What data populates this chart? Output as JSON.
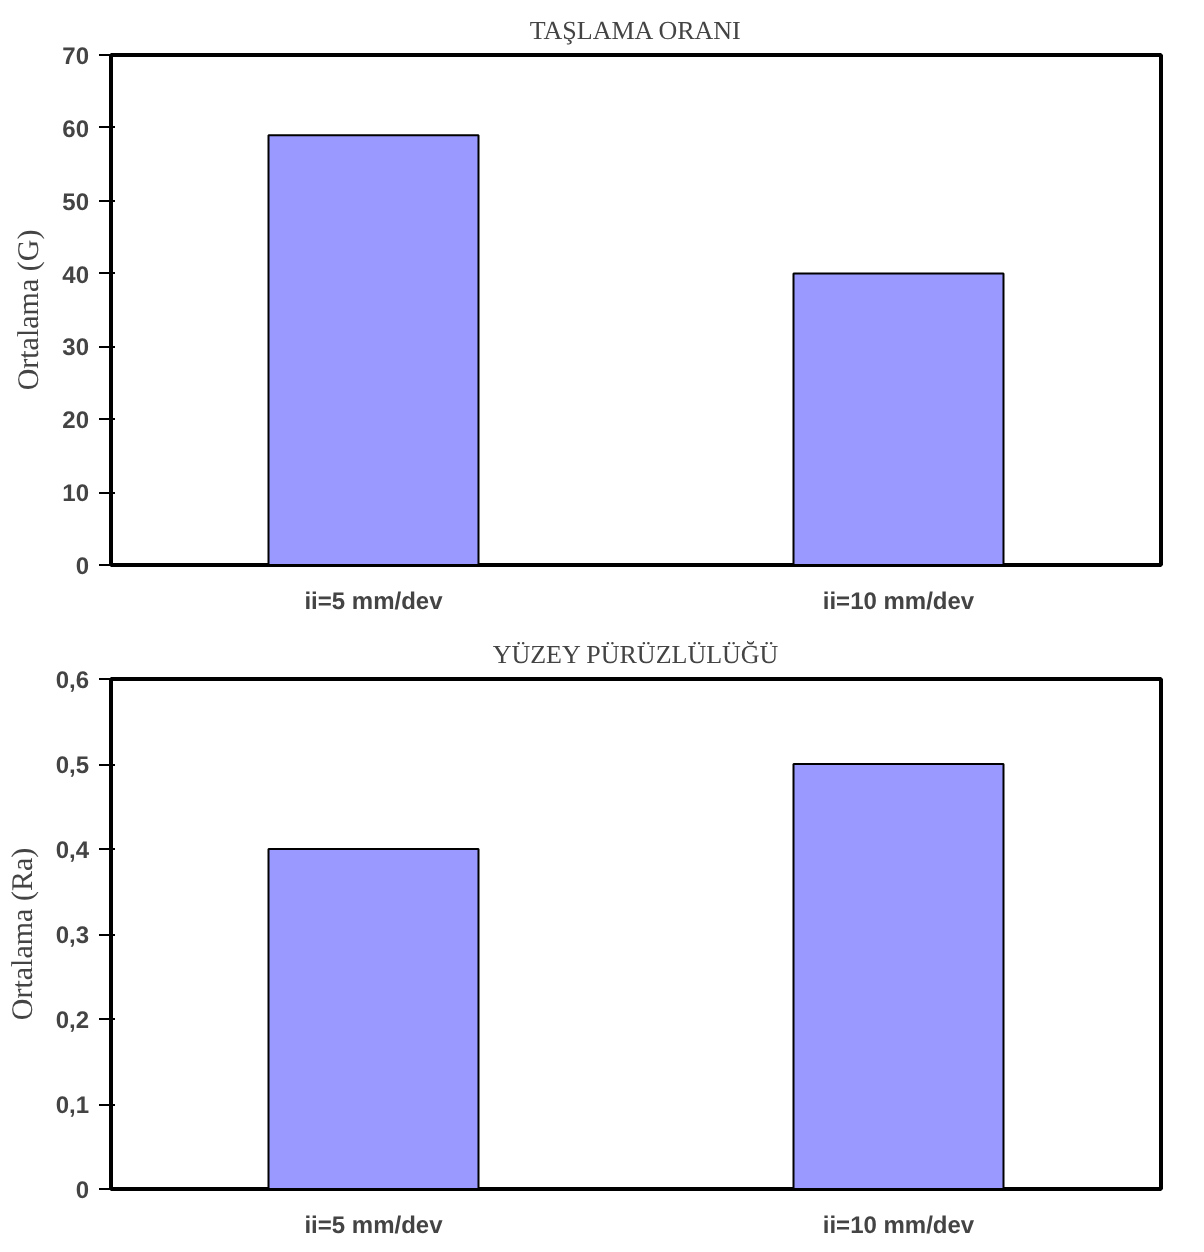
{
  "chart_data": [
    {
      "type": "bar",
      "title": "TAŞLAMA ORANI",
      "ylabel": "Ortalama (G)",
      "categories": [
        "ii=5 mm/dev",
        "ii=10 mm/dev"
      ],
      "values": [
        59,
        40
      ],
      "color": "#9999ff",
      "ylim": [
        0,
        70
      ],
      "yticks": [
        0,
        10,
        20,
        30,
        40,
        50,
        60,
        70
      ]
    },
    {
      "type": "bar",
      "title": "YÜZEY PÜRÜZLÜLÜĞÜ",
      "ylabel": "Ortalama (Ra)",
      "categories": [
        "ii=5 mm/dev",
        "ii=10 mm/dev"
      ],
      "values": [
        0.4,
        0.5
      ],
      "color": "#9999ff",
      "ylim": [
        0,
        0.6
      ],
      "yticks": [
        {
          "value": 0,
          "label": "0"
        },
        {
          "value": 0.1,
          "label": "0,1"
        },
        {
          "value": 0.2,
          "label": "0,2"
        },
        {
          "value": 0.3,
          "label": "0,3"
        },
        {
          "value": 0.4,
          "label": "0,4"
        },
        {
          "value": 0.5,
          "label": "0,5"
        },
        {
          "value": 0.6,
          "label": "0,6"
        }
      ]
    }
  ]
}
